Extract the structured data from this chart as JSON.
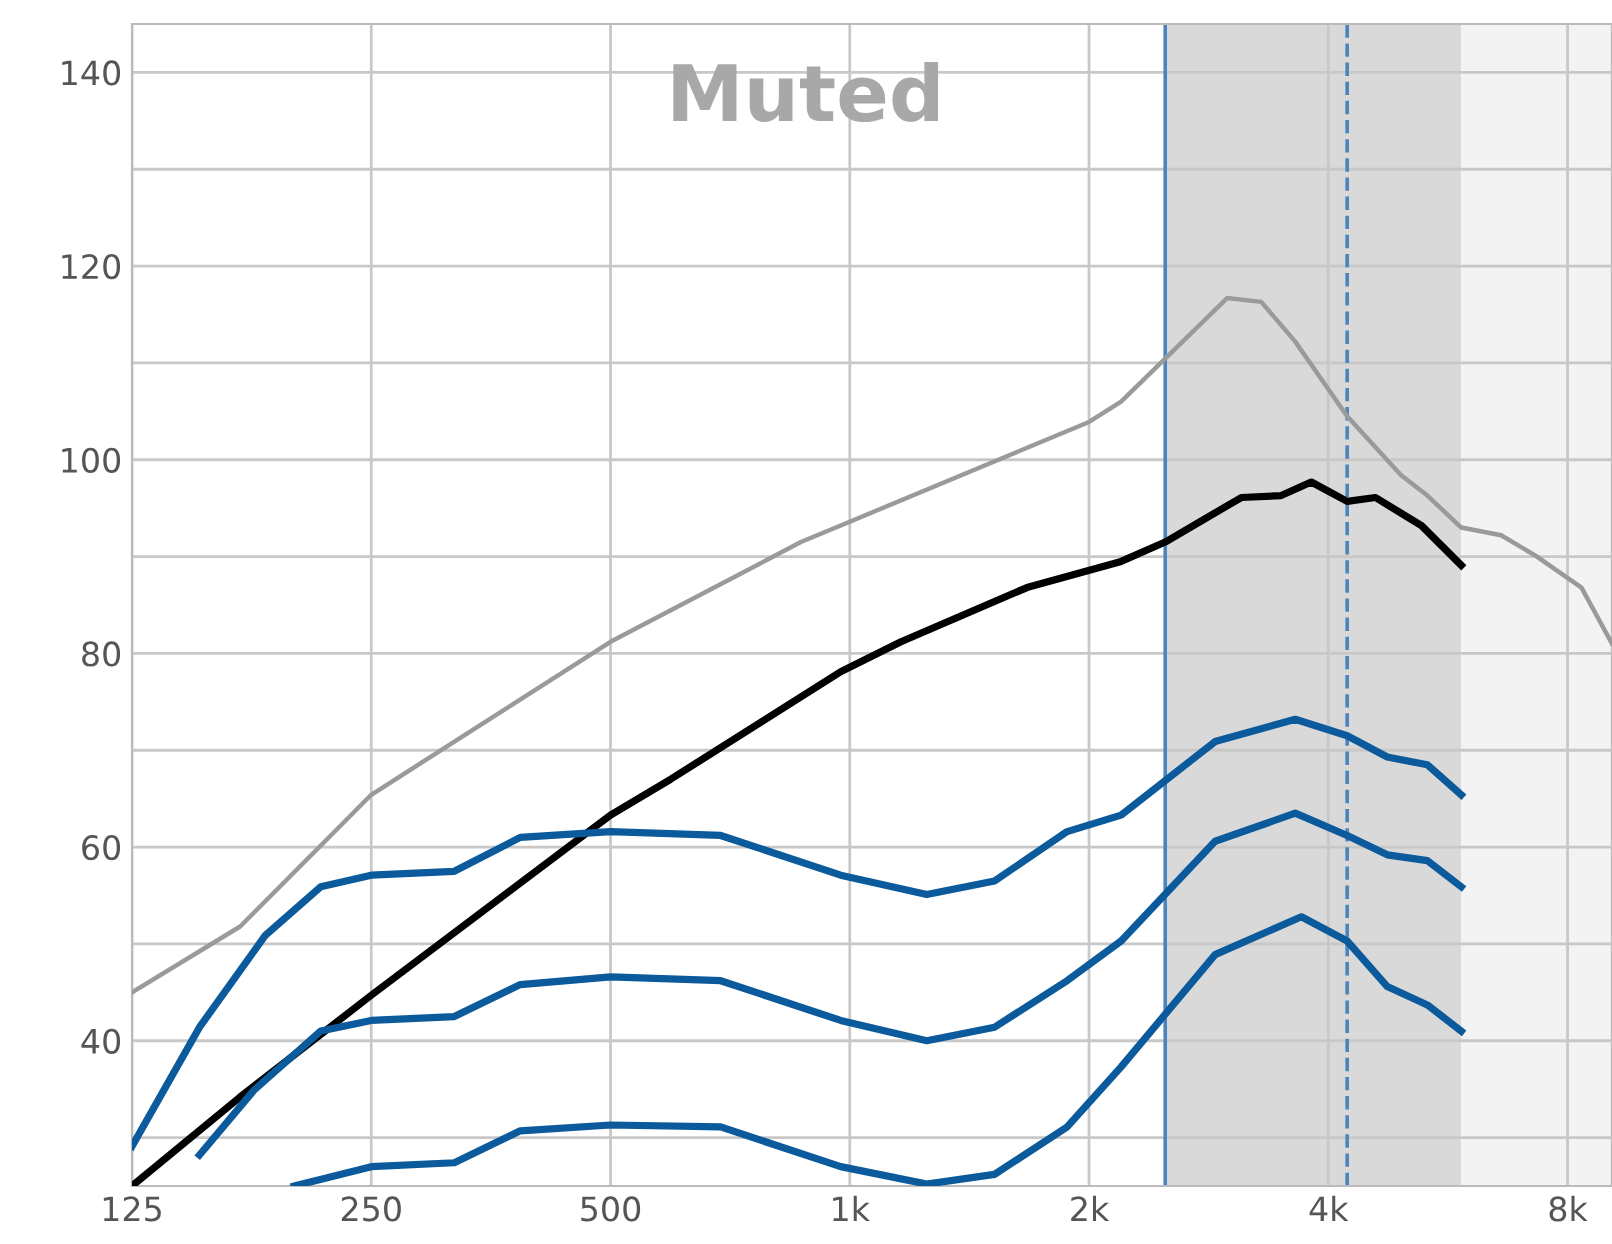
{
  "chart_data": {
    "type": "line",
    "log": "x",
    "grid": true,
    "legend": false,
    "marker": "none",
    "line_style": "solid",
    "xlim": [
      125,
      9100
    ],
    "ylim": [
      25,
      145
    ],
    "xticks": [
      125,
      250,
      500,
      {
        "value": 1000,
        "label": "1k"
      },
      {
        "value": 2000,
        "label": "2k"
      },
      {
        "value": 4000,
        "label": "4k"
      },
      {
        "value": 8000,
        "label": "8k"
      }
    ],
    "yticks": [
      {
        "value": 30,
        "label": null
      },
      40,
      {
        "value": 50,
        "label": null
      },
      60,
      {
        "value": 70,
        "label": null
      },
      80,
      {
        "value": 90,
        "label": null
      },
      100,
      {
        "value": 110,
        "label": null
      },
      120,
      {
        "value": 130,
        "label": null
      },
      140
    ],
    "annotations": [
      "Muted"
    ],
    "bands": [
      {
        "axis": "x",
        "from": 2494,
        "to": 5880,
        "label": null,
        "color": "#d9d9d9"
      },
      {
        "axis": "x",
        "from": 5880,
        "to": 9100,
        "label": null,
        "color": "#f3f3f3"
      }
    ],
    "ref_lines": [
      {
        "axis": "x",
        "value": 2494,
        "label": null,
        "color": "#4a86bd",
        "line_style": "solid"
      },
      {
        "axis": "x",
        "value": 4225,
        "label": null,
        "color": "#4a86bd",
        "line_style": "dashed"
      }
    ],
    "series": [
      {
        "color": "#9a9a9a",
        "x": [
          125,
          171,
          250,
          500,
          868,
          1000,
          2000,
          2195,
          2984,
          3294,
          3635,
          4225,
          4940,
          5330,
          5880,
          6600,
          7290,
          8330,
          9100
        ],
        "values": [
          45,
          51.8,
          65.4,
          81.2,
          91.5,
          93.6,
          103.9,
          106,
          116.7,
          116.3,
          112.2,
          104.5,
          98.4,
          96.3,
          93,
          92.2,
          90.1,
          86.8,
          81
        ]
      },
      {
        "color": "#000000",
        "x": [
          125,
          171,
          250,
          500,
          595,
          974,
          1160,
          1671,
          2195,
          2494,
          3109,
          3490,
          3808,
          4225,
          4586,
          5240,
          5880
        ],
        "values": [
          25,
          34.2,
          44.7,
          63.3,
          67,
          78.1,
          81.2,
          86.8,
          89.5,
          91.5,
          96.1,
          96.3,
          97.7,
          95.7,
          96.1,
          93.2,
          89.1
        ]
      },
      {
        "color": "#0a5a9c",
        "x": [
          125,
          152,
          184,
          216,
          250,
          318,
          385,
          500,
          688,
          974,
          1250,
          1521,
          1877,
          2195,
          2882,
          3635,
          4225,
          4746,
          5330,
          5880
        ],
        "values": [
          29.1,
          41.4,
          50.9,
          55.9,
          57.1,
          57.5,
          61,
          61.6,
          61.2,
          57.1,
          55.1,
          56.5,
          61.6,
          63.3,
          70.9,
          73.2,
          71.5,
          69.3,
          68.5,
          65.4
        ]
      },
      {
        "color": "#0a5a9c",
        "x": [
          152,
          178,
          216,
          250,
          318,
          385,
          500,
          688,
          974,
          1250,
          1521,
          1877,
          2195,
          2882,
          3635,
          4225,
          4746,
          5330,
          5880
        ],
        "values": [
          28.2,
          34.9,
          41,
          42.1,
          42.5,
          45.8,
          46.6,
          46.2,
          42.1,
          40,
          41.4,
          46.2,
          50.3,
          60.6,
          63.5,
          61.2,
          59.2,
          58.6,
          55.9
        ]
      },
      {
        "color": "#0a5a9c",
        "x": [
          200,
          250,
          318,
          385,
          500,
          688,
          974,
          1250,
          1521,
          1877,
          2195,
          2882,
          3700,
          4225,
          4746,
          5330,
          5880
        ],
        "values": [
          25,
          27,
          27.4,
          30.7,
          31.3,
          31.1,
          27,
          25.2,
          26.2,
          31.1,
          37.3,
          48.9,
          52.8,
          50.3,
          45.6,
          43.7,
          41
        ]
      }
    ]
  }
}
